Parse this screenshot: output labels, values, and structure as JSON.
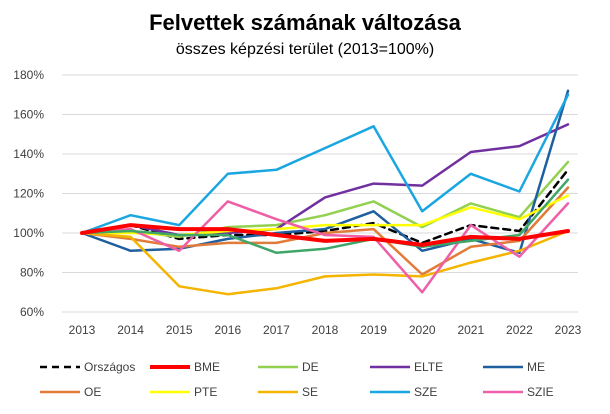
{
  "chart_data": {
    "type": "line",
    "title": "Felvettek számának változása",
    "subtitle": "összes képzési terület (2013=100%)",
    "xlabel": "",
    "ylabel": "",
    "x": [
      "2013",
      "2014",
      "2015",
      "2016",
      "2017",
      "2018",
      "2019",
      "2020",
      "2021",
      "2022",
      "2023"
    ],
    "ylim": [
      60,
      180
    ],
    "yticks": [
      60,
      80,
      100,
      120,
      140,
      160,
      180
    ],
    "ytick_labels": [
      "60%",
      "80%",
      "100%",
      "120%",
      "140%",
      "160%",
      "180%"
    ],
    "grid": true,
    "legend_position": "bottom",
    "series": [
      {
        "name": "Országos",
        "color": "#000000",
        "dashed": true,
        "width": 2.5,
        "values": [
          100,
          104,
          97,
          99,
          99,
          101,
          105,
          95,
          104,
          101,
          132
        ]
      },
      {
        "name": "BME",
        "color": "#ff0000",
        "dashed": false,
        "width": 4,
        "values": [
          100,
          104,
          102,
          102,
          99,
          96,
          97,
          94,
          98,
          97,
          101
        ]
      },
      {
        "name": "DE",
        "color": "#92d050",
        "dashed": false,
        "width": 2.5,
        "values": [
          100,
          101,
          98,
          103,
          104,
          109,
          116,
          103,
          115,
          108,
          136
        ]
      },
      {
        "name": "ELTE",
        "color": "#7030a0",
        "dashed": false,
        "width": 2.5,
        "values": [
          100,
          104,
          99,
          100,
          102,
          118,
          125,
          124,
          141,
          144,
          155
        ]
      },
      {
        "name": "ME",
        "color": "#1f5fa0",
        "dashed": false,
        "width": 2.5,
        "values": [
          100,
          91,
          92,
          97,
          100,
          102,
          111,
          91,
          97,
          90,
          172
        ]
      },
      {
        "name": "OE",
        "color": "#e07b39",
        "dashed": false,
        "width": 2.5,
        "values": [
          100,
          97,
          93,
          95,
          95,
          100,
          102,
          79,
          93,
          96,
          123
        ]
      },
      {
        "name": "PTE",
        "color": "#ffff00",
        "dashed": false,
        "width": 2.5,
        "values": [
          100,
          100,
          99,
          101,
          102,
          104,
          104,
          104,
          113,
          107,
          119
        ]
      },
      {
        "name": "SE",
        "color": "#f4b400",
        "dashed": false,
        "width": 2.5,
        "values": [
          100,
          98,
          73,
          69,
          72,
          78,
          79,
          78,
          85,
          91,
          101
        ]
      },
      {
        "name": "SZE",
        "color": "#1aa6e0",
        "dashed": false,
        "width": 2.5,
        "values": [
          100,
          109,
          104,
          130,
          132,
          143,
          154,
          111,
          130,
          121,
          170
        ]
      },
      {
        "name": "SZIE",
        "color": "#ee5fa7",
        "dashed": false,
        "width": 2.5,
        "values": [
          100,
          102,
          91,
          116,
          107,
          99,
          98,
          70,
          104,
          88,
          115
        ]
      },
      {
        "name": "",
        "color": "#3fa66a",
        "dashed": false,
        "width": 2.5,
        "values": [
          100,
          101,
          99,
          99,
          90,
          92,
          97,
          93,
          96,
          99,
          127
        ]
      }
    ]
  }
}
